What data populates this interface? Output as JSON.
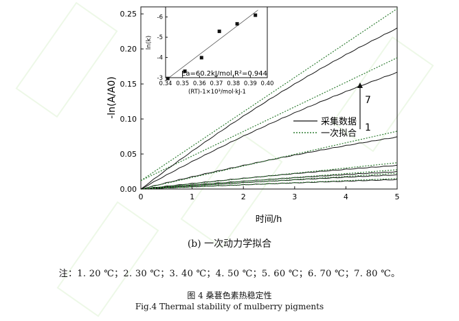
{
  "chart_data": {
    "type": "line",
    "ylabel": "-ln(A/A0)",
    "xlabel": "时间/h",
    "xlim": [
      0,
      5
    ],
    "ylim": [
      0,
      0.26
    ],
    "xticks": [
      "0",
      "1",
      "2",
      "3",
      "4",
      "5"
    ],
    "yticks": [
      "0.00",
      "0.05",
      "0.10",
      "0.15",
      "0.20",
      "0.25"
    ],
    "legend": {
      "position": "right-middle",
      "collected": "采集数据",
      "fitted": "一次拟合"
    },
    "arrow_labels": {
      "top": "7",
      "bottom": "1"
    },
    "fit_style": {
      "collected_color": "#111111",
      "fitted_color": "#2e7d32"
    },
    "series": [
      {
        "k": 0.003
      },
      {
        "k": 0.0045
      },
      {
        "k": 0.0055
      },
      {
        "k": 0.0075
      },
      {
        "k": 0.0165
      },
      {
        "k": 0.037
      },
      {
        "k": 0.051
      }
    ],
    "inset": {
      "type": "scatter",
      "xlabel": "(RT)-1×10³/mol·kJ-1",
      "ylabel": "ln(k)",
      "xlim": [
        0.34,
        0.4
      ],
      "ylim": [
        -3,
        -6.5
      ],
      "xticks": [
        "0.34",
        "0.35",
        "0.36",
        "0.37",
        "0.38",
        "0.39",
        "0.40"
      ],
      "yticks": [
        "-3",
        "-4",
        "-5",
        "-6"
      ],
      "points": [
        {
          "x": 0.3413,
          "y": -2.96
        },
        {
          "x": 0.3514,
          "y": -3.32
        },
        {
          "x": 0.3612,
          "y": -3.99
        },
        {
          "x": 0.3717,
          "y": -5.29
        },
        {
          "x": 0.3822,
          "y": -5.66
        },
        {
          "x": 0.393,
          "y": -6.09
        }
      ],
      "fit": {
        "x": [
          0.3395,
          0.3945
        ],
        "y": [
          -2.84,
          -6.34
        ]
      },
      "annotation": "Ea=60.2kJ/mol,R²=0.944"
    }
  },
  "captions": {
    "subfigure": "(b)  一次动力学拟合",
    "note": "注：1. 20 ℃；2. 30 ℃；3. 40 ℃；4. 50 ℃；5. 60 ℃；6. 70 ℃；7. 80 ℃。",
    "figure_cn": "图 4   桑葚色素热稳定性",
    "figure_en": "Fig.4 Thermal stability of mulberry pigments"
  }
}
